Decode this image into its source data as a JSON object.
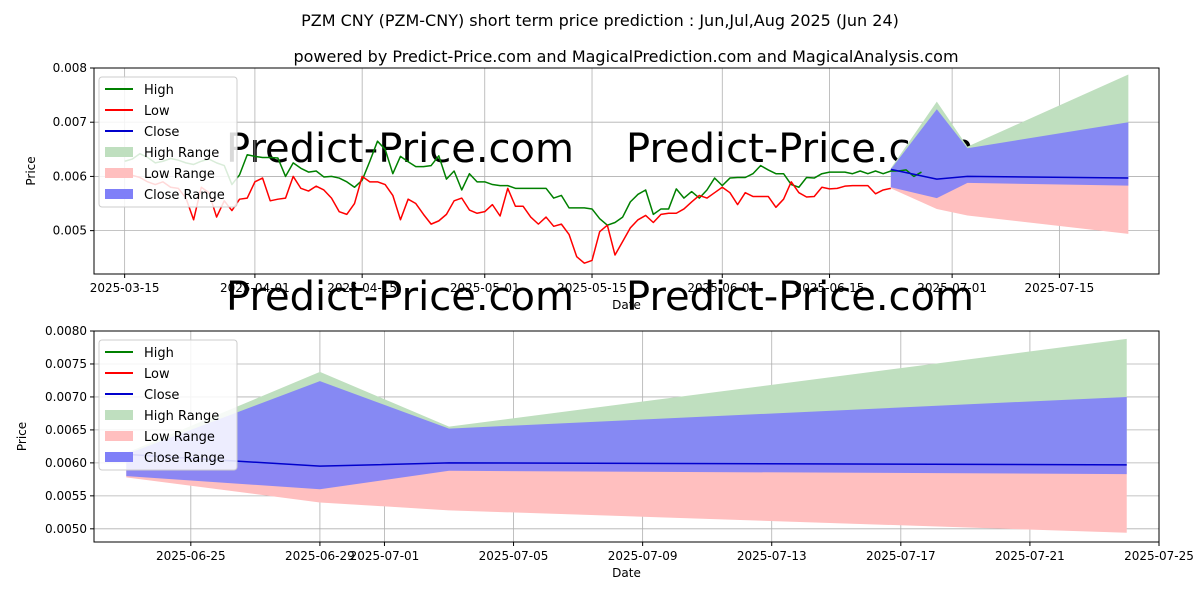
{
  "title": "PZM CNY (PZM-CNY) short term price prediction : Jun,Jul,Aug 2025 (Jun 24)",
  "subtitle": "powered by Predict-Price.com and MagicalPrediction.com and MagicalAnalysis.com",
  "watermark": "Predict-Price.com",
  "colors": {
    "high": "#008000",
    "low": "#ff0000",
    "close": "#0000cc",
    "high_range": "#bfdfbf",
    "low_range": "#ffbfbf",
    "close_range": "#7f7ff8",
    "grid": "#b0b0b0",
    "watermark": "#e4e4e4"
  },
  "chart_data": [
    {
      "type": "line",
      "xlabel": "Date",
      "ylabel": "Price",
      "xlim": [
        "2025-03-11",
        "2025-07-28"
      ],
      "ylim": [
        0.0042,
        0.008
      ],
      "xticks": [
        "2025-03-15",
        "2025-04-01",
        "2025-04-15",
        "2025-05-01",
        "2025-05-15",
        "2025-06-01",
        "2025-06-15",
        "2025-07-01",
        "2025-07-15"
      ],
      "yticks": [
        0.005,
        0.006,
        0.007,
        0.008
      ],
      "ytick_labels": [
        "0.005",
        "0.006",
        "0.007",
        "0.008"
      ],
      "legend": [
        "High",
        "Low",
        "Close",
        "High Range",
        "Low Range",
        "Close Range"
      ],
      "history_start": "2025-03-15",
      "series": [
        {
          "name": "High",
          "values": [
            0.00628,
            0.00632,
            0.00642,
            0.00635,
            0.00625,
            0.00628,
            0.00633,
            0.0063,
            0.00625,
            0.00622,
            0.00628,
            0.00632,
            0.00625,
            0.0062,
            0.00585,
            0.00603,
            0.0064,
            0.00637,
            0.00635,
            0.00635,
            0.00634,
            0.006,
            0.00625,
            0.00615,
            0.00608,
            0.0061,
            0.00599,
            0.006,
            0.00597,
            0.0059,
            0.0058,
            0.00593,
            0.00628,
            0.00665,
            0.0065,
            0.00605,
            0.00637,
            0.00627,
            0.00618,
            0.00618,
            0.0062,
            0.00638,
            0.00595,
            0.0061,
            0.00575,
            0.00605,
            0.0059,
            0.0059,
            0.00585,
            0.00583,
            0.00583,
            0.00578,
            0.00578,
            0.00578,
            0.00578,
            0.00578,
            0.0056,
            0.00565,
            0.00542,
            0.00542,
            0.00542,
            0.0054,
            0.00522,
            0.0051,
            0.00515,
            0.00525,
            0.00553,
            0.00567,
            0.00575,
            0.0053,
            0.0054,
            0.0054,
            0.00577,
            0.0056,
            0.00572,
            0.0056,
            0.00575,
            0.00597,
            0.00583,
            0.00597,
            0.00598,
            0.00598,
            0.00605,
            0.0062,
            0.00612,
            0.00605,
            0.00605,
            0.00585,
            0.0058,
            0.00598,
            0.00597,
            0.00605,
            0.00608,
            0.00608,
            0.00608,
            0.00605,
            0.0061,
            0.00605,
            0.0061,
            0.00605,
            0.0061,
            0.0061,
            0.00612,
            0.006,
            0.00608
          ]
        },
        {
          "name": "Low",
          "values": [
            0.00605,
            0.00602,
            0.00598,
            0.0059,
            0.00585,
            0.0059,
            0.0058,
            0.00578,
            0.0056,
            0.0052,
            0.0058,
            0.0057,
            0.00525,
            0.00555,
            0.00537,
            0.00558,
            0.0056,
            0.0059,
            0.00597,
            0.00555,
            0.00558,
            0.0056,
            0.006,
            0.00578,
            0.00573,
            0.00582,
            0.00575,
            0.0056,
            0.00535,
            0.0053,
            0.0055,
            0.006,
            0.0059,
            0.0059,
            0.00585,
            0.00565,
            0.0052,
            0.00558,
            0.0055,
            0.0053,
            0.00512,
            0.00518,
            0.0053,
            0.00555,
            0.0056,
            0.00538,
            0.00532,
            0.00535,
            0.00548,
            0.00527,
            0.00578,
            0.00545,
            0.00545,
            0.00525,
            0.00512,
            0.00525,
            0.00508,
            0.00512,
            0.00493,
            0.00452,
            0.0044,
            0.00445,
            0.00498,
            0.0051,
            0.00455,
            0.0048,
            0.00505,
            0.0052,
            0.00528,
            0.00515,
            0.0053,
            0.00532,
            0.00532,
            0.0054,
            0.00553,
            0.00565,
            0.0056,
            0.0057,
            0.0058,
            0.0057,
            0.00548,
            0.0057,
            0.00563,
            0.00563,
            0.00563,
            0.00543,
            0.00558,
            0.0059,
            0.0057,
            0.00562,
            0.00563,
            0.0058,
            0.00577,
            0.00578,
            0.00582,
            0.00583,
            0.00583,
            0.00583,
            0.00568,
            0.00575,
            0.00578
          ]
        },
        {
          "name": "Close",
          "x": [
            "2025-06-23",
            "2025-06-29",
            "2025-07-03",
            "2025-07-24"
          ],
          "values": [
            0.00613,
            0.00595,
            0.006,
            0.00597
          ]
        }
      ],
      "bands": [
        {
          "name": "High Range",
          "x": [
            "2025-06-23",
            "2025-06-29",
            "2025-07-03",
            "2025-07-24"
          ],
          "lower": [
            0.006,
            0.00595,
            0.006,
            0.00597
          ],
          "upper": [
            0.00615,
            0.00738,
            0.00655,
            0.00788
          ]
        },
        {
          "name": "Low Range",
          "x": [
            "2025-06-23",
            "2025-06-29",
            "2025-07-03",
            "2025-07-24"
          ],
          "lower": [
            0.00578,
            0.0054,
            0.00528,
            0.00494
          ],
          "upper": [
            0.006,
            0.00595,
            0.006,
            0.00597
          ]
        },
        {
          "name": "Close Range",
          "x": [
            "2025-06-23",
            "2025-06-29",
            "2025-07-03",
            "2025-07-24"
          ],
          "lower": [
            0.0058,
            0.0056,
            0.00588,
            0.00583
          ],
          "upper": [
            0.00613,
            0.00724,
            0.00652,
            0.007
          ]
        }
      ]
    },
    {
      "type": "line",
      "xlabel": "Date",
      "ylabel": "Price",
      "xlim": [
        "2025-06-22",
        "2025-07-25"
      ],
      "ylim": [
        0.0048,
        0.008
      ],
      "xticks": [
        "2025-06-25",
        "2025-06-29",
        "2025-07-01",
        "2025-07-05",
        "2025-07-09",
        "2025-07-13",
        "2025-07-17",
        "2025-07-21",
        "2025-07-25"
      ],
      "yticks": [
        0.005,
        0.0055,
        0.006,
        0.0065,
        0.007,
        0.0075,
        0.008
      ],
      "ytick_labels": [
        "0.0050",
        "0.0055",
        "0.0060",
        "0.0065",
        "0.0070",
        "0.0075",
        "0.0080"
      ],
      "legend": [
        "High",
        "Low",
        "Close",
        "High Range",
        "Low Range",
        "Close Range"
      ],
      "series": [
        {
          "name": "Close",
          "x": [
            "2025-06-23",
            "2025-06-29",
            "2025-07-03",
            "2025-07-24"
          ],
          "values": [
            0.00613,
            0.00595,
            0.006,
            0.00597
          ]
        }
      ],
      "bands": [
        {
          "name": "High Range",
          "x": [
            "2025-06-23",
            "2025-06-29",
            "2025-07-03",
            "2025-07-24"
          ],
          "lower": [
            0.006,
            0.00595,
            0.006,
            0.00597
          ],
          "upper": [
            0.00615,
            0.00738,
            0.00655,
            0.00788
          ]
        },
        {
          "name": "Low Range",
          "x": [
            "2025-06-23",
            "2025-06-29",
            "2025-07-03",
            "2025-07-24"
          ],
          "lower": [
            0.00578,
            0.0054,
            0.00528,
            0.00494
          ],
          "upper": [
            0.006,
            0.00595,
            0.006,
            0.00597
          ]
        },
        {
          "name": "Close Range",
          "x": [
            "2025-06-23",
            "2025-06-29",
            "2025-07-03",
            "2025-07-24"
          ],
          "lower": [
            0.0058,
            0.0056,
            0.00588,
            0.00583
          ],
          "upper": [
            0.00613,
            0.00724,
            0.00652,
            0.007
          ]
        }
      ]
    }
  ]
}
